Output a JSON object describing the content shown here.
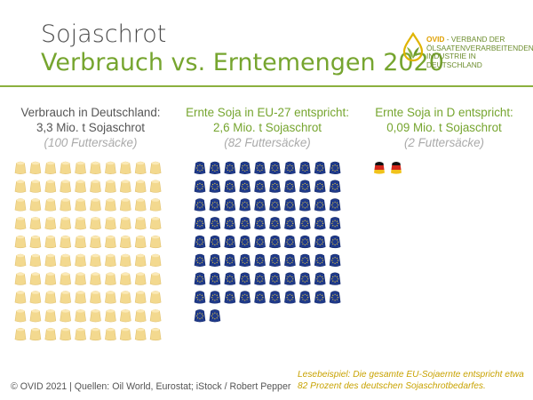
{
  "header": {
    "title_line1": "Sojaschrot",
    "title_line2": "Verbrauch vs. Erntemengen 2020"
  },
  "logo": {
    "brand": "OVID",
    "text": " - VERBAND DER ÖLSAATENVERARBEITENDEN INDUSTRIE IN DEUTSCHLAND",
    "icon": "oil-drop-leaf-icon"
  },
  "colors": {
    "accent_green": "#76a52f",
    "sack_gold": "#f3d98f",
    "eu_blue": "#1f3a8a",
    "caption_gold": "#c8a200"
  },
  "chart_data": {
    "type": "pictogram",
    "unit_label": "Futtersäcke",
    "series": [
      {
        "name": "Verbrauch in Deutschland:",
        "amount_text": "3,3 Mio. t Sojaschrot",
        "sacks_text": "(100 Futtersäcke)",
        "sacks": 100,
        "value_mio_t": 3.3,
        "icon": "feed-sack-icon",
        "color": "#f3d98f"
      },
      {
        "name": "Ernte Soja in EU-27 entspricht:",
        "amount_text": "2,6 Mio. t Sojaschrot",
        "sacks_text": "(82 Futtersäcke)",
        "sacks": 82,
        "value_mio_t": 2.6,
        "icon": "eu-flag-sack-icon",
        "color": "#1f3a8a"
      },
      {
        "name": "Ernte Soja in D entspricht:",
        "amount_text": "0,09 Mio. t Sojaschrot",
        "sacks_text": "(2 Futtersäcke)",
        "sacks": 2,
        "value_mio_t": 0.09,
        "icon": "german-flag-sack-icon",
        "color": "#000000"
      }
    ]
  },
  "footer": {
    "source": "© OVID 2021  |  Quellen: Oil World, Eurostat; iStock / Robert Pepper",
    "reading_example": "Lesebeispiel: Die gesamte EU-Sojaernte entspricht etwa 82 Prozent des deutschen Sojaschrotbedarfes."
  }
}
